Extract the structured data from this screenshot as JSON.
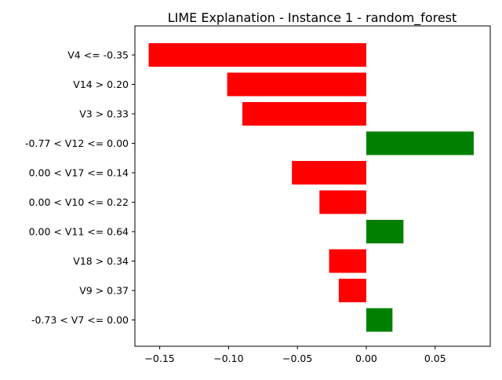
{
  "chart_data": {
    "type": "bar",
    "orientation": "horizontal",
    "title": "LIME Explanation - Instance 1 - random_forest",
    "xlabel": "",
    "ylabel": "",
    "categories": [
      "V4 <= -0.35",
      "V14 > 0.20",
      "V3 > 0.33",
      "-0.77 < V12 <= 0.00",
      "0.00 < V17 <= 0.14",
      "0.00 < V10 <= 0.22",
      "0.00 < V11 <= 0.64",
      "V18 > 0.34",
      "V9 > 0.37",
      "-0.73 < V7 <= 0.00"
    ],
    "values": [
      -0.158,
      -0.101,
      -0.09,
      0.078,
      -0.054,
      -0.034,
      0.027,
      -0.027,
      -0.02,
      0.019
    ],
    "xlim": [
      -0.168,
      0.09
    ],
    "xticks": [
      -0.15,
      -0.1,
      -0.05,
      0.0,
      0.05
    ],
    "xtick_labels": [
      "−0.15",
      "−0.10",
      "−0.05",
      "0.00",
      "0.05"
    ],
    "grid": false,
    "legend": "none",
    "colors": {
      "positive": "#008000",
      "negative": "#ff0000"
    }
  }
}
